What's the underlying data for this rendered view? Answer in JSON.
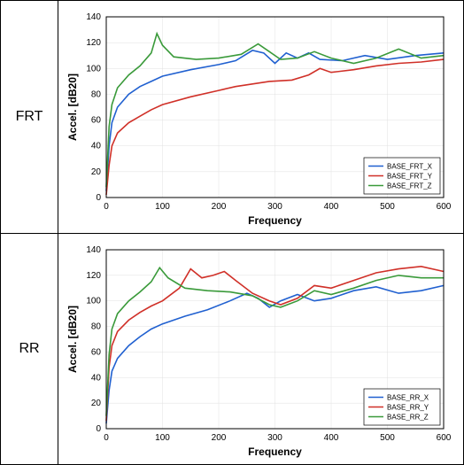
{
  "rows": [
    {
      "key": "frt",
      "row_label": "FRT",
      "chart": {
        "type": "line",
        "xlabel": "Frequency",
        "ylabel": "Accel. [dB20]",
        "label_fontsize": 12,
        "tick_fontsize": 10,
        "legend_fontsize": 8,
        "xlim": [
          0,
          600
        ],
        "ylim": [
          0,
          140
        ],
        "xtick_step": 100,
        "ytick_step": 20,
        "background_color": "#ffffff",
        "grid_color": "#e0e0e0",
        "border_color": "#000000",
        "line_width": 1.6,
        "legend_position": "bottom-right",
        "series": [
          {
            "name": "BASE_FRT_X",
            "color": "#2060d0",
            "points": [
              [
                0,
                5
              ],
              [
                5,
                40
              ],
              [
                10,
                58
              ],
              [
                20,
                70
              ],
              [
                40,
                80
              ],
              [
                60,
                86
              ],
              [
                80,
                90
              ],
              [
                100,
                94
              ],
              [
                150,
                99
              ],
              [
                200,
                103
              ],
              [
                230,
                106
              ],
              [
                260,
                114
              ],
              [
                280,
                112
              ],
              [
                300,
                104
              ],
              [
                320,
                112
              ],
              [
                340,
                108
              ],
              [
                360,
                112
              ],
              [
                380,
                107
              ],
              [
                420,
                106
              ],
              [
                460,
                110
              ],
              [
                500,
                107
              ],
              [
                550,
                110
              ],
              [
                600,
                112
              ]
            ]
          },
          {
            "name": "BASE_FRT_Y",
            "color": "#d03028",
            "points": [
              [
                0,
                2
              ],
              [
                5,
                25
              ],
              [
                10,
                40
              ],
              [
                20,
                50
              ],
              [
                40,
                58
              ],
              [
                60,
                63
              ],
              [
                80,
                68
              ],
              [
                100,
                72
              ],
              [
                150,
                78
              ],
              [
                200,
                83
              ],
              [
                230,
                86
              ],
              [
                260,
                88
              ],
              [
                290,
                90
              ],
              [
                330,
                91
              ],
              [
                360,
                95
              ],
              [
                380,
                100
              ],
              [
                400,
                97
              ],
              [
                440,
                99
              ],
              [
                480,
                102
              ],
              [
                520,
                104
              ],
              [
                560,
                105
              ],
              [
                600,
                107
              ]
            ]
          },
          {
            "name": "BASE_FRT_Z",
            "color": "#3a9a3a",
            "points": [
              [
                0,
                8
              ],
              [
                5,
                55
              ],
              [
                10,
                72
              ],
              [
                20,
                85
              ],
              [
                40,
                95
              ],
              [
                60,
                102
              ],
              [
                80,
                112
              ],
              [
                90,
                127
              ],
              [
                100,
                118
              ],
              [
                120,
                109
              ],
              [
                160,
                107
              ],
              [
                200,
                108
              ],
              [
                240,
                111
              ],
              [
                270,
                119
              ],
              [
                290,
                113
              ],
              [
                310,
                107
              ],
              [
                340,
                108
              ],
              [
                370,
                113
              ],
              [
                400,
                108
              ],
              [
                440,
                104
              ],
              [
                480,
                108
              ],
              [
                520,
                115
              ],
              [
                560,
                108
              ],
              [
                600,
                110
              ]
            ]
          }
        ]
      }
    },
    {
      "key": "rr",
      "row_label": "RR",
      "chart": {
        "type": "line",
        "xlabel": "Frequency",
        "ylabel": "Accel. [dB20]",
        "label_fontsize": 12,
        "tick_fontsize": 10,
        "legend_fontsize": 8,
        "xlim": [
          0,
          600
        ],
        "ylim": [
          0,
          140
        ],
        "xtick_step": 100,
        "ytick_step": 20,
        "background_color": "#ffffff",
        "grid_color": "#e0e0e0",
        "border_color": "#000000",
        "line_width": 1.6,
        "legend_position": "bottom-right",
        "series": [
          {
            "name": "BASE_RR_X",
            "color": "#2060d0",
            "points": [
              [
                0,
                4
              ],
              [
                5,
                30
              ],
              [
                10,
                45
              ],
              [
                20,
                55
              ],
              [
                40,
                65
              ],
              [
                60,
                72
              ],
              [
                80,
                78
              ],
              [
                100,
                82
              ],
              [
                140,
                88
              ],
              [
                180,
                93
              ],
              [
                220,
                100
              ],
              [
                250,
                106
              ],
              [
                270,
                102
              ],
              [
                290,
                95
              ],
              [
                310,
                100
              ],
              [
                340,
                105
              ],
              [
                370,
                100
              ],
              [
                400,
                102
              ],
              [
                440,
                108
              ],
              [
                480,
                111
              ],
              [
                520,
                106
              ],
              [
                560,
                108
              ],
              [
                600,
                112
              ]
            ]
          },
          {
            "name": "BASE_RR_Y",
            "color": "#d03028",
            "points": [
              [
                0,
                6
              ],
              [
                5,
                48
              ],
              [
                10,
                65
              ],
              [
                20,
                76
              ],
              [
                40,
                85
              ],
              [
                60,
                91
              ],
              [
                80,
                96
              ],
              [
                100,
                100
              ],
              [
                130,
                110
              ],
              [
                150,
                125
              ],
              [
                170,
                118
              ],
              [
                190,
                120
              ],
              [
                210,
                123
              ],
              [
                230,
                116
              ],
              [
                260,
                106
              ],
              [
                290,
                100
              ],
              [
                310,
                97
              ],
              [
                340,
                102
              ],
              [
                370,
                112
              ],
              [
                400,
                110
              ],
              [
                440,
                116
              ],
              [
                480,
                122
              ],
              [
                520,
                125
              ],
              [
                560,
                127
              ],
              [
                600,
                123
              ]
            ]
          },
          {
            "name": "BASE_RR_Z",
            "color": "#3a9a3a",
            "points": [
              [
                0,
                10
              ],
              [
                5,
                58
              ],
              [
                10,
                78
              ],
              [
                20,
                90
              ],
              [
                40,
                100
              ],
              [
                60,
                107
              ],
              [
                80,
                115
              ],
              [
                95,
                126
              ],
              [
                110,
                118
              ],
              [
                140,
                110
              ],
              [
                180,
                108
              ],
              [
                220,
                107
              ],
              [
                260,
                104
              ],
              [
                290,
                97
              ],
              [
                310,
                95
              ],
              [
                340,
                100
              ],
              [
                370,
                108
              ],
              [
                400,
                105
              ],
              [
                440,
                110
              ],
              [
                480,
                116
              ],
              [
                520,
                120
              ],
              [
                560,
                118
              ],
              [
                600,
                118
              ]
            ]
          }
        ]
      }
    }
  ]
}
